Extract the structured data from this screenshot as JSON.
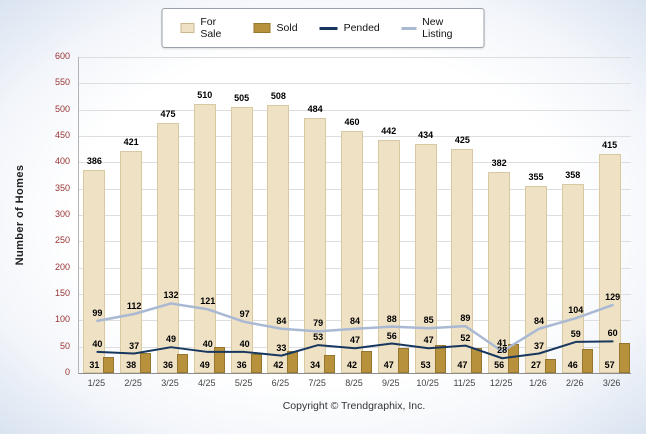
{
  "page": {
    "footer": "Copyright © Trendgraphix, Inc."
  },
  "chart_data": {
    "type": "bar",
    "ylabel": "Number of Homes",
    "ylim": [
      0,
      600
    ],
    "ytick_step": 50,
    "grid": true,
    "legend_position": "top",
    "categories": [
      "1/25",
      "2/25",
      "3/25",
      "4/25",
      "5/25",
      "6/25",
      "7/25",
      "8/25",
      "9/25",
      "10/25",
      "11/25",
      "12/25",
      "1/26",
      "2/26",
      "3/26"
    ],
    "series": [
      {
        "name": "For Sale",
        "kind": "bar",
        "color": "#EFE1C4",
        "values": [
          386,
          421,
          475,
          510,
          505,
          508,
          484,
          460,
          442,
          434,
          425,
          382,
          355,
          358,
          415
        ]
      },
      {
        "name": "Sold",
        "kind": "bar",
        "color": "#B8913C",
        "values": [
          31,
          38,
          36,
          49,
          36,
          42,
          34,
          42,
          47,
          53,
          47,
          56,
          27,
          46,
          57
        ]
      },
      {
        "name": "Pended",
        "kind": "line",
        "color": "#17375E",
        "values": [
          40,
          37,
          49,
          40,
          40,
          33,
          53,
          47,
          56,
          47,
          52,
          28,
          37,
          59,
          60
        ]
      },
      {
        "name": "New Listing",
        "kind": "line",
        "color": "#AAB9D3",
        "values": [
          99,
          112,
          132,
          121,
          97,
          84,
          79,
          84,
          88,
          85,
          89,
          41,
          84,
          104,
          129
        ]
      }
    ]
  }
}
